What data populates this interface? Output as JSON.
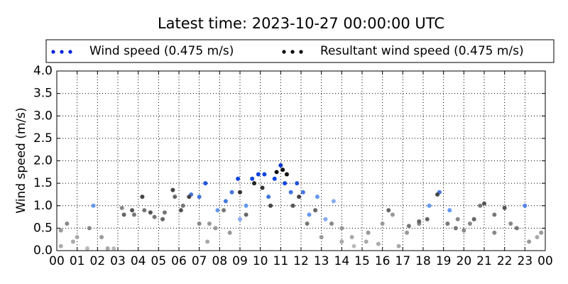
{
  "chart_data": {
    "type": "scatter",
    "title": "Latest time: 2023-10-27 00:00:00 UTC",
    "y_label": "Wind speed (m/s)",
    "grid": true,
    "legend_position": "top",
    "xlim": [
      0,
      24
    ],
    "xticks": [
      {
        "value": 0,
        "label": "00"
      },
      {
        "value": 1,
        "label": "01"
      },
      {
        "value": 2,
        "label": "02"
      },
      {
        "value": 3,
        "label": "03"
      },
      {
        "value": 4,
        "label": "04"
      },
      {
        "value": 5,
        "label": "05"
      },
      {
        "value": 6,
        "label": "06"
      },
      {
        "value": 7,
        "label": "07"
      },
      {
        "value": 8,
        "label": "08"
      },
      {
        "value": 9,
        "label": "09"
      },
      10,
      11,
      12,
      13,
      14,
      15,
      16,
      17,
      18,
      19,
      20,
      21,
      22,
      23,
      {
        "value": 24,
        "label": "00"
      }
    ],
    "ylim": [
      0,
      4
    ],
    "yticks": [
      {
        "value": 0,
        "label": "0.0"
      },
      0.5,
      {
        "value": 1,
        "label": "1.0"
      },
      1.5,
      {
        "value": 2,
        "label": "2.0"
      },
      2.5,
      {
        "value": 3,
        "label": "3.0"
      },
      3.5,
      {
        "value": 4,
        "label": "4.0"
      }
    ],
    "series": [
      {
        "name": "Wind speed (0.475 m/s)",
        "color": "#0022dd",
        "x": [
          0.2,
          0.5,
          1.0,
          1.6,
          1.8,
          2.5,
          3.2,
          3.8,
          4.3,
          4.8,
          5.3,
          5.8,
          6.2,
          6.6,
          7.0,
          7.3,
          7.5,
          7.9,
          8.3,
          8.6,
          8.9,
          9.0,
          9.3,
          9.6,
          9.9,
          10.2,
          10.4,
          10.7,
          11.0,
          11.2,
          11.5,
          11.8,
          12.1,
          12.4,
          12.8,
          13.2,
          13.6,
          14.0,
          14.5,
          15.2,
          16.0,
          16.5,
          17.2,
          17.8,
          18.3,
          18.8,
          19.3,
          19.7,
          20.3,
          20.8,
          21.5,
          22.3,
          23.0,
          23.6
        ],
        "values": [
          0.45,
          0.6,
          0.3,
          0.5,
          1.0,
          0.05,
          0.95,
          0.8,
          0.9,
          0.75,
          0.85,
          1.2,
          1.0,
          1.25,
          1.2,
          1.5,
          0.6,
          0.9,
          1.1,
          1.3,
          1.6,
          0.7,
          1.0,
          1.6,
          1.7,
          1.7,
          1.2,
          1.6,
          1.9,
          1.5,
          1.3,
          1.5,
          1.3,
          0.8,
          1.2,
          0.7,
          1.1,
          0.5,
          0.3,
          0.2,
          0.6,
          0.8,
          0.4,
          0.6,
          1.0,
          1.3,
          0.9,
          0.7,
          0.6,
          1.0,
          0.8,
          0.6,
          1.0,
          0.3
        ],
        "point_colors": [
          "#999999",
          "#888888",
          "#aaaaaa",
          "#888888",
          "#6699ee",
          "#aaaaaa",
          "#888888",
          "#777777",
          "#777777",
          "#777777",
          "#777777",
          "#666666",
          "#777777",
          "#4477dd",
          "#4477dd",
          "#2255dd",
          "#999999",
          "#6699ee",
          "#4477dd",
          "#4477dd",
          "#1144dd",
          "#88aaee",
          "#6699ee",
          "#1144dd",
          "#1144dd",
          "#1144dd",
          "#4477dd",
          "#1144dd",
          "#0033cc",
          "#1144dd",
          "#4477dd",
          "#2255dd",
          "#4477dd",
          "#6699ee",
          "#6699ee",
          "#88aaee",
          "#88aaee",
          "#999999",
          "#aaaaaa",
          "#aaaaaa",
          "#999999",
          "#999999",
          "#999999",
          "#888888",
          "#6699ee",
          "#4477dd",
          "#6699ee",
          "#888888",
          "#888888",
          "#777777",
          "#777777",
          "#888888",
          "#5588ee",
          "#aaaaaa"
        ]
      },
      {
        "name": "Resultant wind speed (0.475 m/s)",
        "color": "#000000",
        "x": [
          0.2,
          0.8,
          1.5,
          2.2,
          2.8,
          3.3,
          3.7,
          4.2,
          4.6,
          5.2,
          5.7,
          6.1,
          6.5,
          7.0,
          7.4,
          7.8,
          8.2,
          8.5,
          9.0,
          9.3,
          9.7,
          10.1,
          10.5,
          10.8,
          11.1,
          11.3,
          11.6,
          11.9,
          12.3,
          12.7,
          13.0,
          13.5,
          14.0,
          14.6,
          15.3,
          15.8,
          16.3,
          16.8,
          17.3,
          17.8,
          18.2,
          18.7,
          19.2,
          19.6,
          20.0,
          20.5,
          21.0,
          21.5,
          22.0,
          22.6,
          23.2,
          23.8
        ],
        "values": [
          0.1,
          0.2,
          0.05,
          0.3,
          0.05,
          0.8,
          0.9,
          1.2,
          0.85,
          0.7,
          1.35,
          0.9,
          1.2,
          0.6,
          0.2,
          0.5,
          0.9,
          0.4,
          1.3,
          0.8,
          1.5,
          1.4,
          1.0,
          1.75,
          1.8,
          1.7,
          1.0,
          1.2,
          0.6,
          0.9,
          0.3,
          0.6,
          0.2,
          0.1,
          0.4,
          0.15,
          0.9,
          0.1,
          0.55,
          0.65,
          0.7,
          1.25,
          0.6,
          0.5,
          0.45,
          0.7,
          1.05,
          0.4,
          0.95,
          0.5,
          0.2,
          0.4
        ],
        "point_colors": [
          "#aaaaaa",
          "#aaaaaa",
          "#bbbbbb",
          "#999999",
          "#bbbbbb",
          "#666666",
          "#555555",
          "#444444",
          "#555555",
          "#666666",
          "#444444",
          "#555555",
          "#444444",
          "#888888",
          "#aaaaaa",
          "#999999",
          "#777777",
          "#999999",
          "#333333",
          "#666666",
          "#222222",
          "#333333",
          "#444444",
          "#111111",
          "#111111",
          "#111111",
          "#555555",
          "#444444",
          "#777777",
          "#666666",
          "#999999",
          "#888888",
          "#aaaaaa",
          "#bbbbbb",
          "#999999",
          "#aaaaaa",
          "#666666",
          "#aaaaaa",
          "#777777",
          "#666666",
          "#666666",
          "#444444",
          "#777777",
          "#777777",
          "#888888",
          "#666666",
          "#555555",
          "#888888",
          "#555555",
          "#777777",
          "#999999",
          "#999999"
        ]
      }
    ]
  }
}
